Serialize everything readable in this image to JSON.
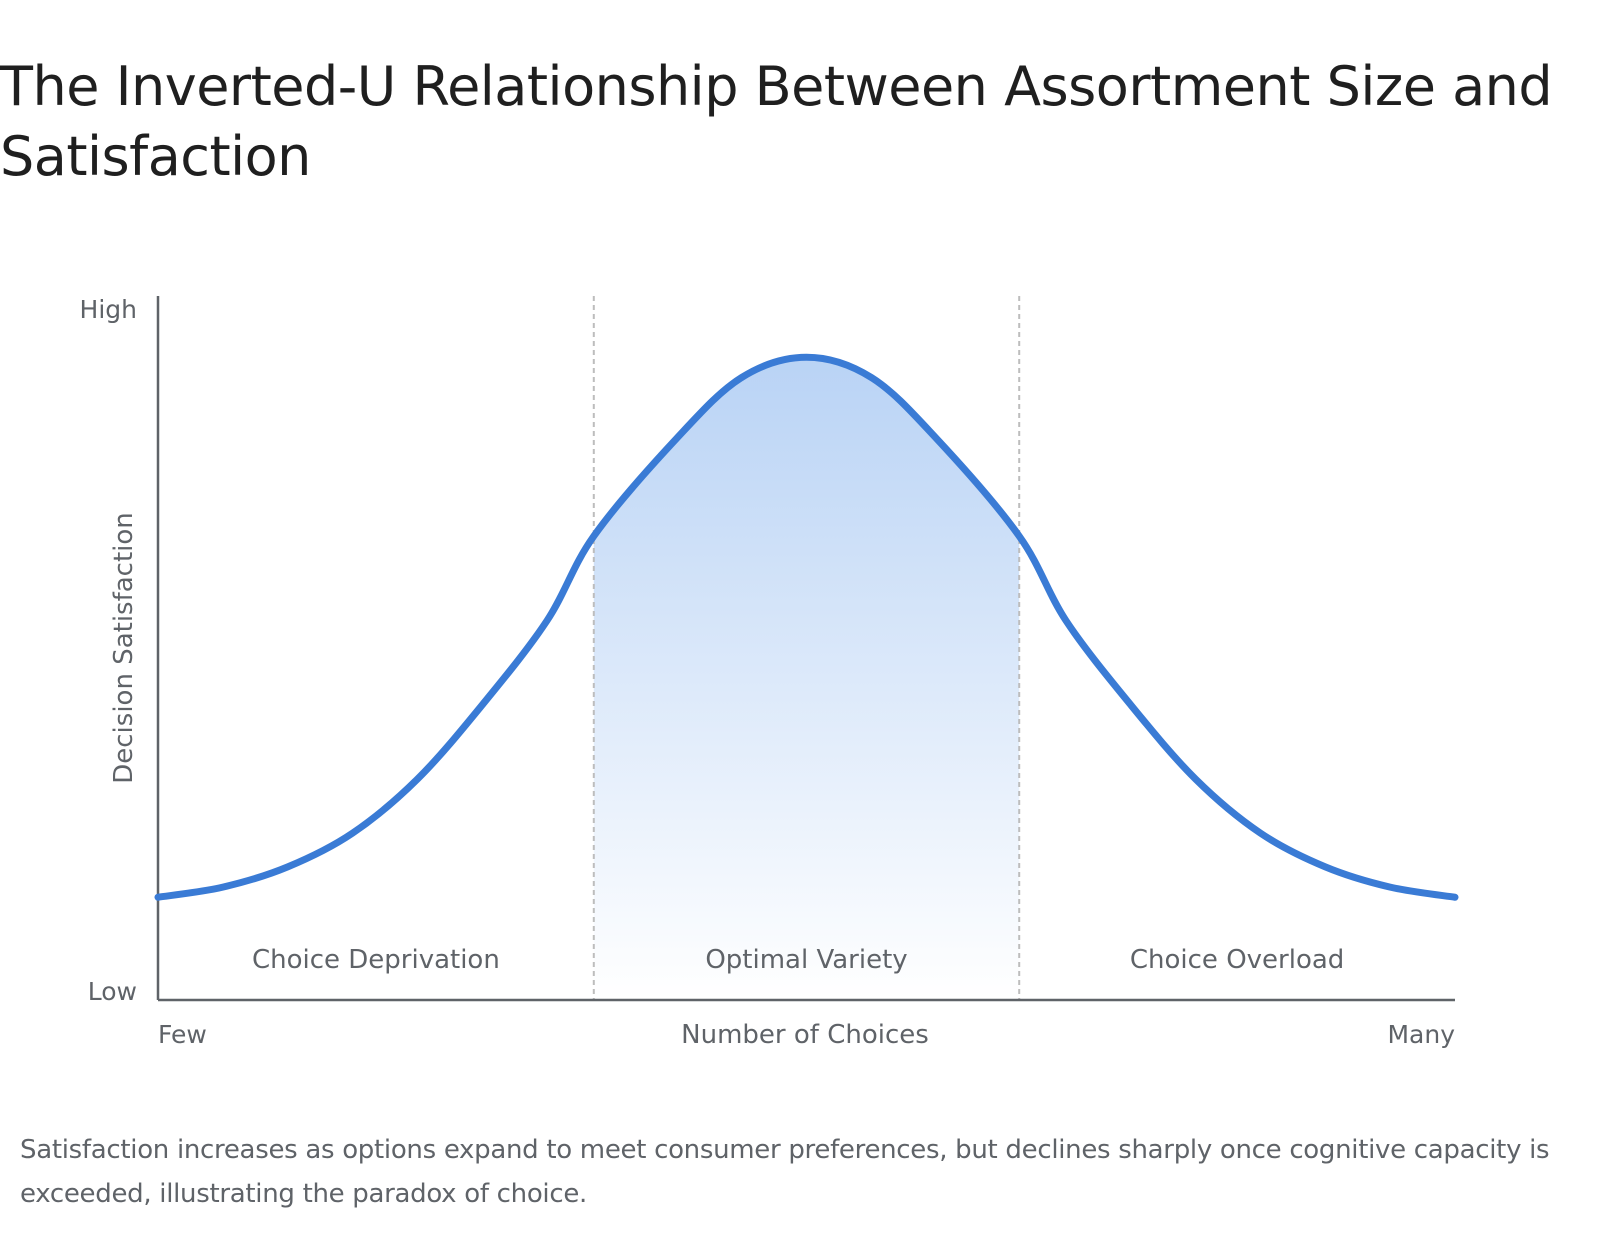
{
  "colors": {
    "curve": "#3a7bd5",
    "fill_top": "#b9d3f5",
    "fill_bottom": "#ffffff",
    "axis": "#5f6368",
    "divider": "#bdbdbd",
    "label": "#5f6368",
    "title": "#1f1f1f"
  },
  "chart_data": {
    "type": "area",
    "title": "The Inverted-U Relationship Between Assortment Size and Satisfaction",
    "caption": "Satisfaction increases as options expand to meet consumer preferences, but declines sharply once cognitive capacity is exceeded, illustrating the paradox of choice.",
    "xlabel": "Number of Choices",
    "ylabel": "Decision Satisfaction",
    "x_tick_labels": [
      "Few",
      "Many"
    ],
    "y_tick_labels": [
      "Low",
      "High"
    ],
    "xlim": [
      0,
      1
    ],
    "ylim": [
      0,
      1
    ],
    "grid": false,
    "legend": "none",
    "regions": [
      {
        "label": "Choice Deprivation",
        "x_range": [
          0,
          0.336
        ]
      },
      {
        "label": "Optimal Variety",
        "x_range": [
          0.336,
          0.664
        ],
        "highlighted": true
      },
      {
        "label": "Choice Overload",
        "x_range": [
          0.664,
          1
        ]
      }
    ],
    "series": [
      {
        "x": [
          0,
          0.05,
          0.1,
          0.15,
          0.2,
          0.25,
          0.3,
          0.336,
          0.4,
          0.45,
          0.5,
          0.55,
          0.6,
          0.664,
          0.7,
          0.75,
          0.8,
          0.85,
          0.9,
          0.95,
          1.0
        ],
        "values": [
          0.13,
          0.145,
          0.175,
          0.225,
          0.305,
          0.415,
          0.54,
          0.665,
          0.81,
          0.9,
          0.93,
          0.9,
          0.81,
          0.665,
          0.54,
          0.415,
          0.305,
          0.225,
          0.175,
          0.145,
          0.13
        ]
      }
    ]
  }
}
